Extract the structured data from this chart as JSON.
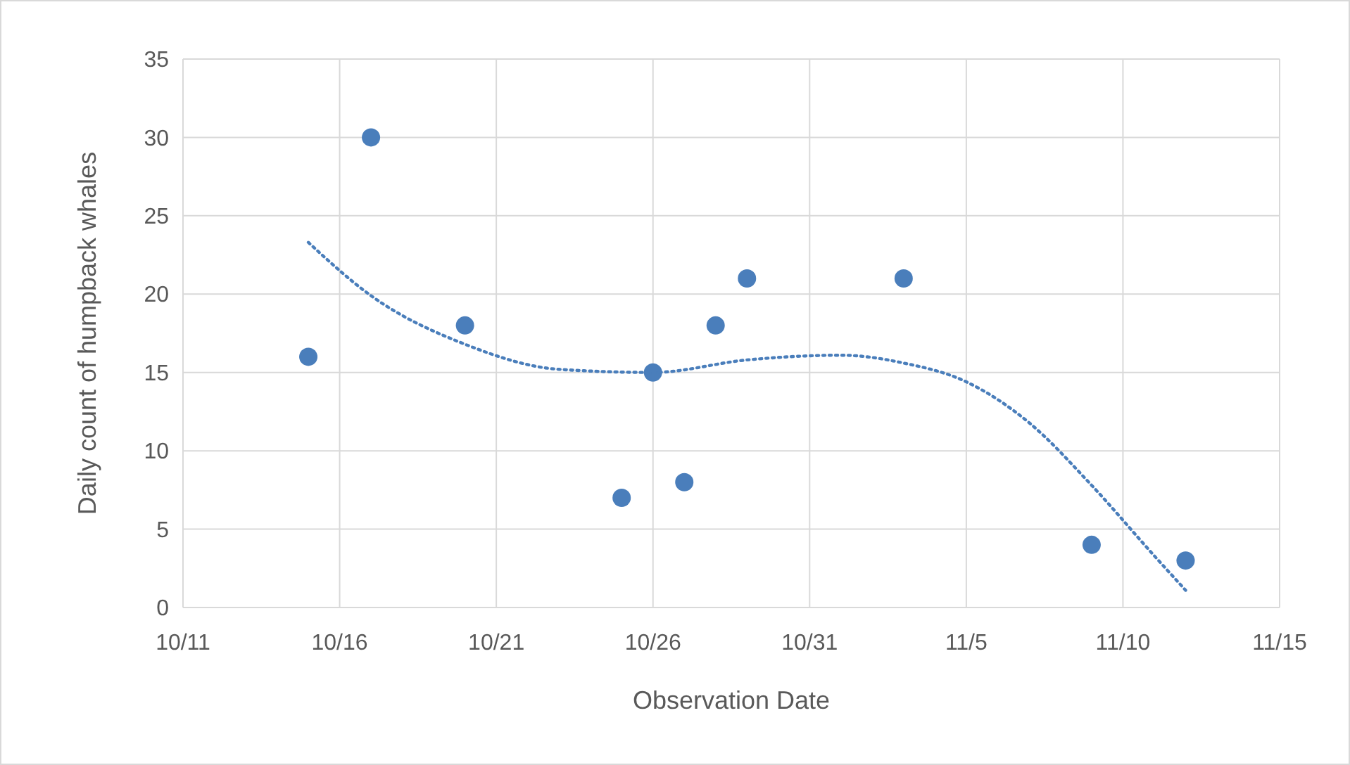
{
  "chart_data": {
    "type": "scatter",
    "xlabel": "Observation Date",
    "ylabel": "Daily count of humpback whales",
    "xlim": [
      "--10-11",
      "--11-15"
    ],
    "ylim": [
      0,
      35
    ],
    "xticks": [
      {
        "value": "--10-11",
        "label": "10/11"
      },
      {
        "value": "--10-16",
        "label": "10/16"
      },
      {
        "value": "--10-21",
        "label": "10/21"
      },
      {
        "value": "--10-26",
        "label": "10/26"
      },
      {
        "value": "--10-31",
        "label": "10/31"
      },
      {
        "value": "--11-05",
        "label": "11/5"
      },
      {
        "value": "--11-10",
        "label": "11/10"
      },
      {
        "value": "--11-15",
        "label": "11/15"
      }
    ],
    "yticks": [
      0,
      5,
      10,
      15,
      20,
      25,
      30,
      35
    ],
    "grid": true,
    "series": [
      {
        "color": "#4a7ebb",
        "marker": "circle",
        "x": [
          "--10-15",
          "--10-17",
          "--10-20",
          "--10-25",
          "--10-26",
          "--10-27",
          "--10-28",
          "--10-29",
          "--11-03",
          "--11-09",
          "--11-12"
        ],
        "values": [
          16,
          30,
          18,
          7,
          15,
          8,
          18,
          21,
          21,
          4,
          3
        ]
      },
      {
        "type": "line",
        "color": "#4a7ebb",
        "line_style": "dotted",
        "marker": "none",
        "x": [
          "--10-15",
          "--10-17",
          "--10-20",
          "--10-23",
          "--10-26",
          "--10-29",
          "--11-01",
          "--11-03",
          "--11-05",
          "--11-07",
          "--11-09",
          "--11-11",
          "--11-12"
        ],
        "values": [
          23.3,
          19.9,
          16.8,
          15.2,
          15.0,
          15.8,
          16.1,
          15.6,
          14.4,
          11.8,
          7.8,
          3.3,
          1.1
        ]
      }
    ]
  }
}
